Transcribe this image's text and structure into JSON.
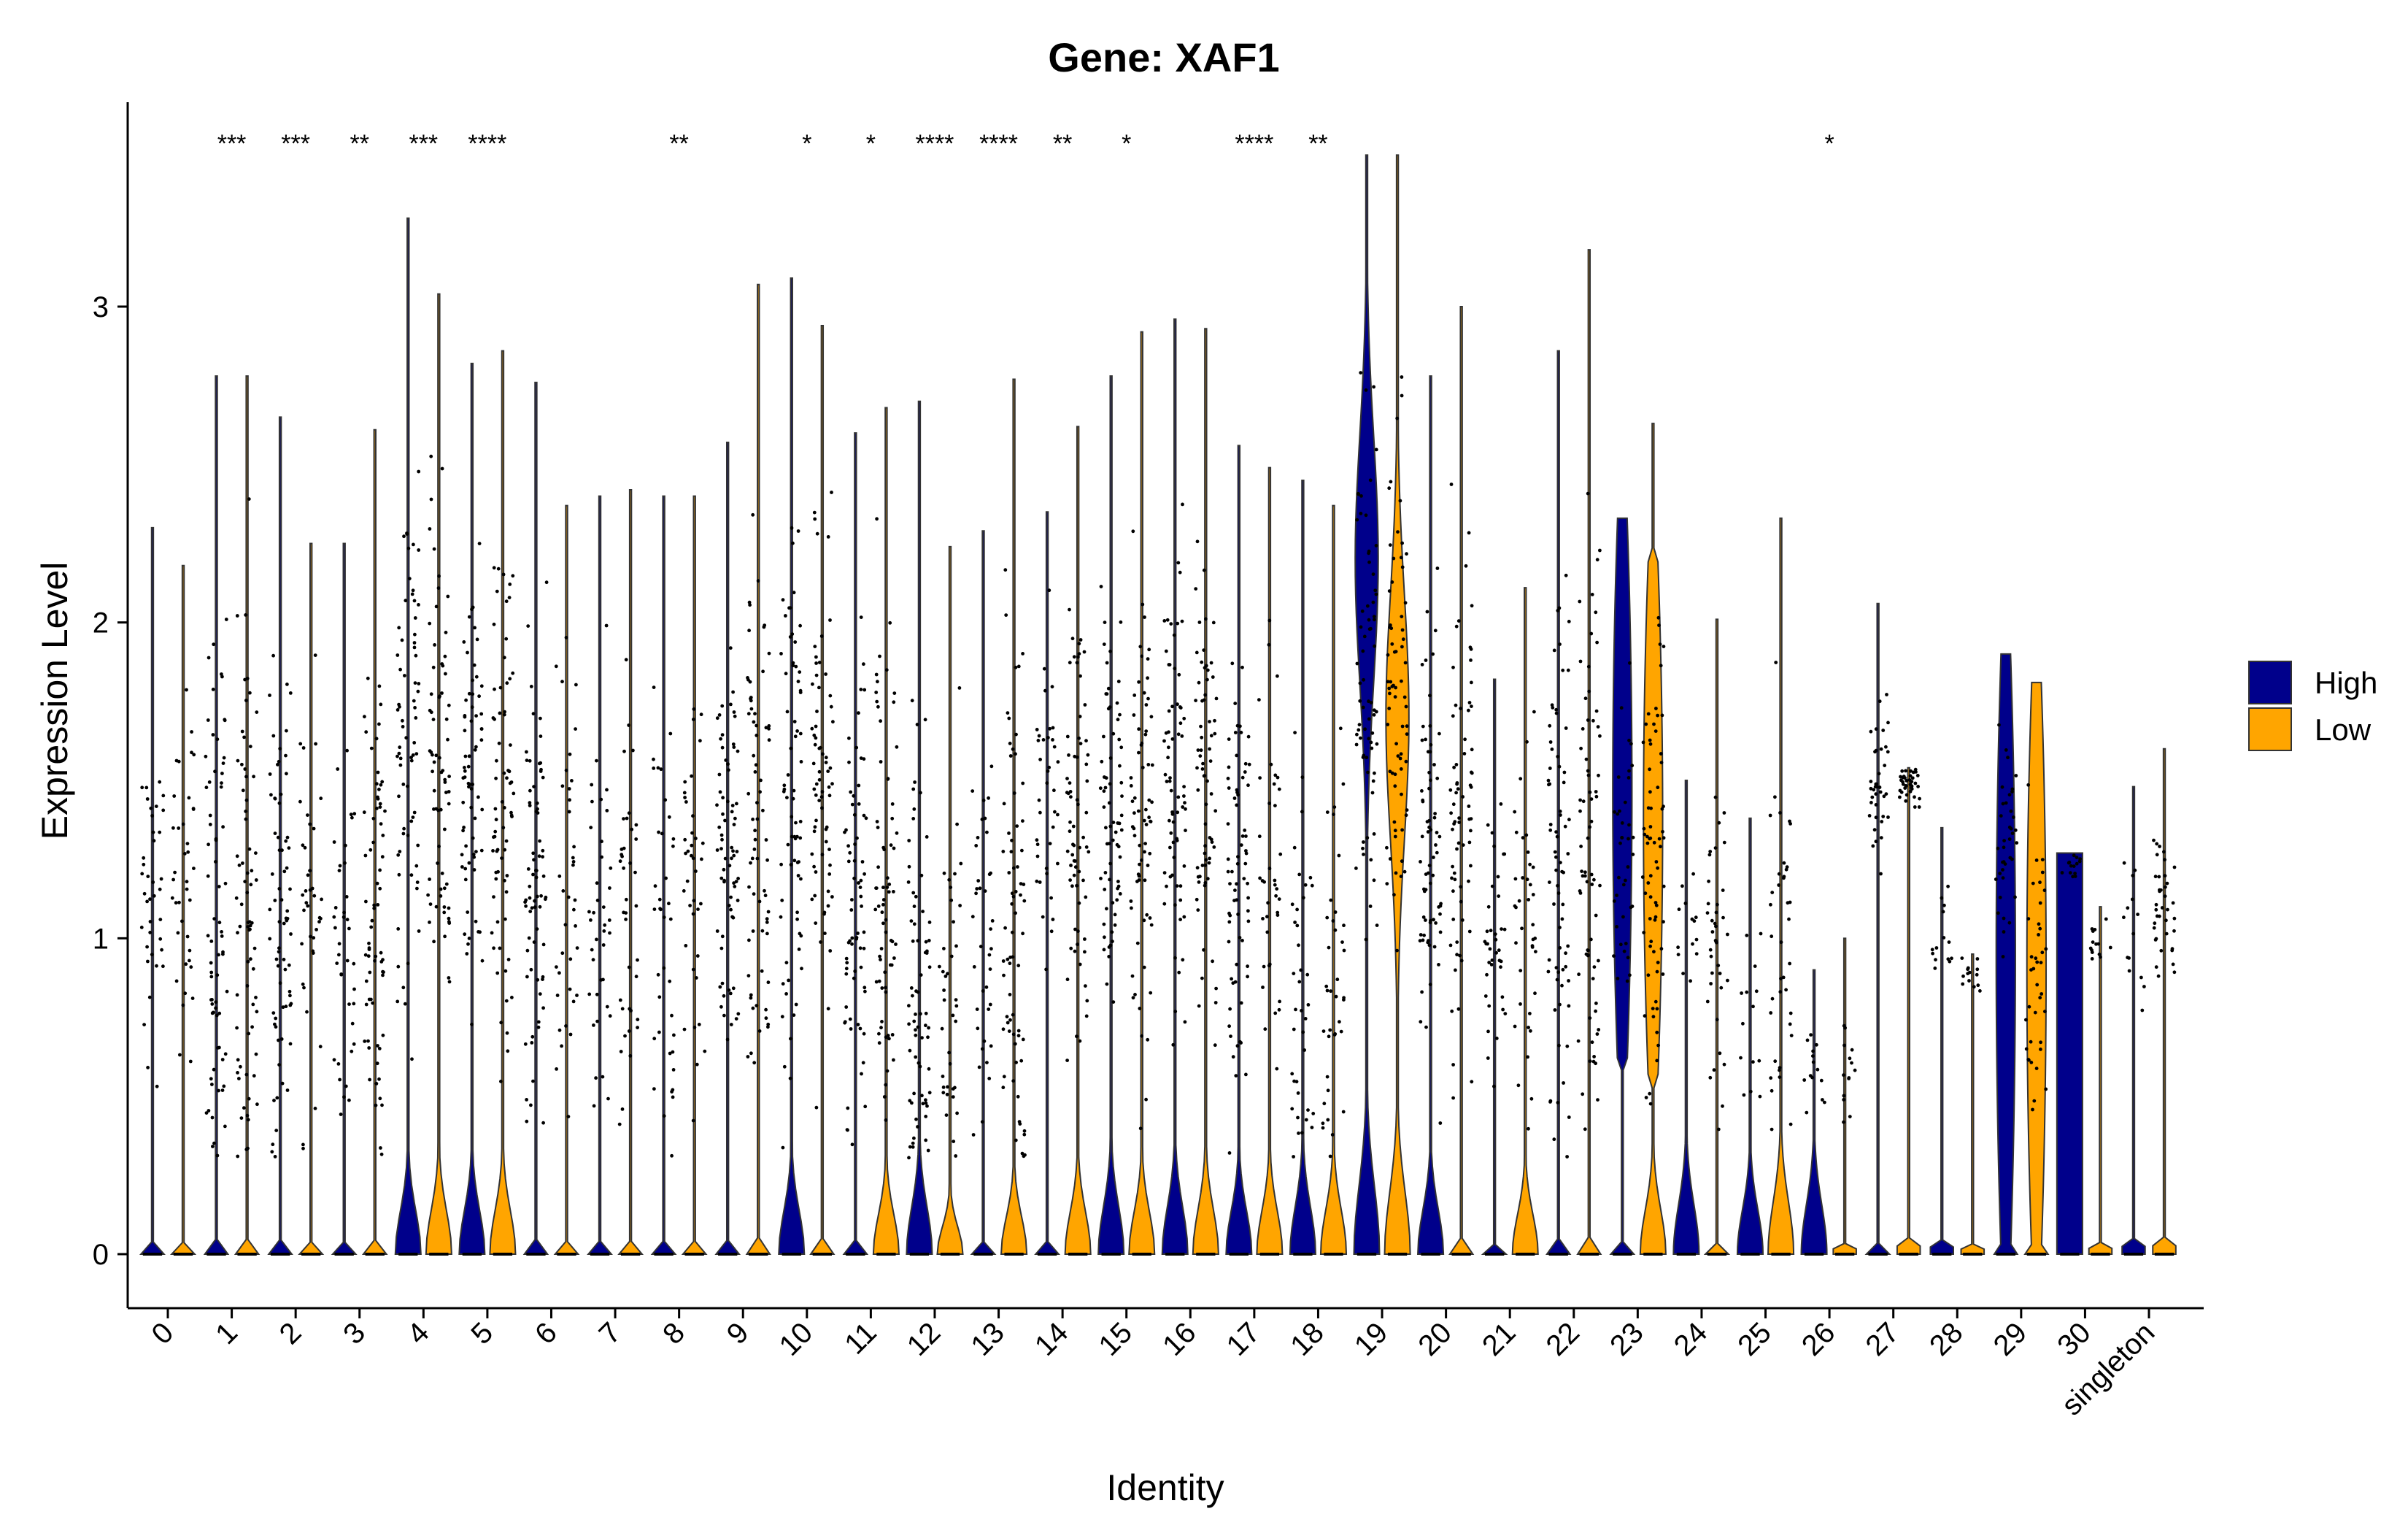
{
  "chart_data": {
    "type": "violin",
    "title": "Gene: XAF1",
    "xlabel": "Identity",
    "ylabel": "Expression Level",
    "ylim": [
      -0.17,
      3.65
    ],
    "yticks": [
      0,
      1,
      2,
      3
    ],
    "grid": false,
    "legend_position": "right",
    "series": [
      {
        "name": "High",
        "color": "#00008B"
      },
      {
        "name": "Low",
        "color": "#FFA500"
      }
    ],
    "categories": [
      "0",
      "1",
      "2",
      "3",
      "4",
      "5",
      "6",
      "7",
      "8",
      "9",
      "10",
      "11",
      "12",
      "13",
      "14",
      "15",
      "16",
      "17",
      "18",
      "19",
      "20",
      "21",
      "22",
      "23",
      "24",
      "25",
      "26",
      "27",
      "28",
      "29",
      "30",
      "singleton"
    ],
    "significance": [
      "",
      "***",
      "***",
      "**",
      "***",
      "****",
      "",
      "",
      "**",
      "",
      "*",
      "*",
      "****",
      "****",
      "**",
      "*",
      "",
      "****",
      "**",
      "",
      "",
      "",
      "",
      "",
      "",
      "",
      "*",
      "",
      "",
      "",
      "",
      ""
    ],
    "max_high": [
      2.3,
      2.78,
      2.65,
      2.25,
      3.28,
      2.82,
      2.76,
      2.4,
      2.4,
      2.57,
      3.09,
      2.6,
      2.7,
      2.29,
      2.35,
      2.78,
      2.96,
      2.56,
      2.45,
      3.48,
      2.78,
      1.82,
      2.86,
      2.33,
      1.5,
      1.38,
      0.9,
      2.06,
      1.35,
      1.9,
      1.27,
      1.48
    ],
    "max_low": [
      2.18,
      2.78,
      2.25,
      2.61,
      3.04,
      2.86,
      2.37,
      2.42,
      2.4,
      3.07,
      2.94,
      2.68,
      2.24,
      2.77,
      2.62,
      2.92,
      2.93,
      2.49,
      2.37,
      3.48,
      3.0,
      2.11,
      3.18,
      2.63,
      2.01,
      2.33,
      1.0,
      1.54,
      0.95,
      1.81,
      1.1,
      1.6
    ],
    "zero_peak_high": [
      0,
      0,
      0,
      0,
      0.35,
      0.35,
      0,
      0,
      0,
      0,
      0.35,
      0,
      0.38,
      0,
      0,
      0.38,
      0.38,
      0.35,
      0.38,
      0.55,
      0.36,
      0,
      0,
      0,
      0.4,
      0.36,
      0.4,
      0,
      0,
      0,
      0,
      0
    ],
    "zero_peak_low": [
      0,
      0,
      0,
      0,
      0.35,
      0.35,
      0,
      0,
      0,
      0,
      0,
      0.32,
      0.22,
      0.3,
      0.34,
      0.34,
      0.36,
      0.35,
      0.36,
      0.5,
      0,
      0.32,
      0,
      0.36,
      0,
      0.42,
      0,
      0,
      0,
      0,
      0,
      0
    ],
    "expressed_center_high": [
      1.1,
      1.0,
      1.1,
      1.0,
      1.5,
      1.5,
      1.2,
      1.1,
      1.0,
      1.3,
      1.4,
      1.2,
      0.8,
      0.9,
      1.4,
      1.4,
      1.5,
      1.2,
      0.8,
      1.9,
      1.3,
      1.0,
      1.2,
      1.3,
      1.0,
      0.8,
      0.6,
      1.5,
      1.0,
      1.3,
      1.27,
      1.0
    ],
    "expressed_center_low": [
      1.2,
      1.1,
      1.1,
      1.1,
      1.5,
      1.4,
      1.2,
      1.1,
      1.1,
      1.4,
      1.5,
      1.2,
      0.7,
      1.0,
      1.4,
      1.4,
      1.5,
      1.2,
      0.8,
      1.8,
      1.4,
      1.0,
      1.3,
      1.3,
      1.0,
      1.0,
      0.6,
      1.5,
      0.9,
      0.9,
      1.0,
      1.1
    ],
    "notable_bodies": {
      "19": {
        "high_body_peak": 2.2,
        "low_body_peak": 1.7
      },
      "23": {
        "high_body_range": [
          0.6,
          2.33
        ],
        "low_body_range": [
          0.55,
          2.2
        ]
      },
      "29": {
        "high_body_range": [
          0.0,
          1.9
        ],
        "low_body_range": [
          0.0,
          1.81
        ]
      },
      "30": {
        "high_body_range": [
          0.0,
          1.27
        ]
      }
    }
  }
}
